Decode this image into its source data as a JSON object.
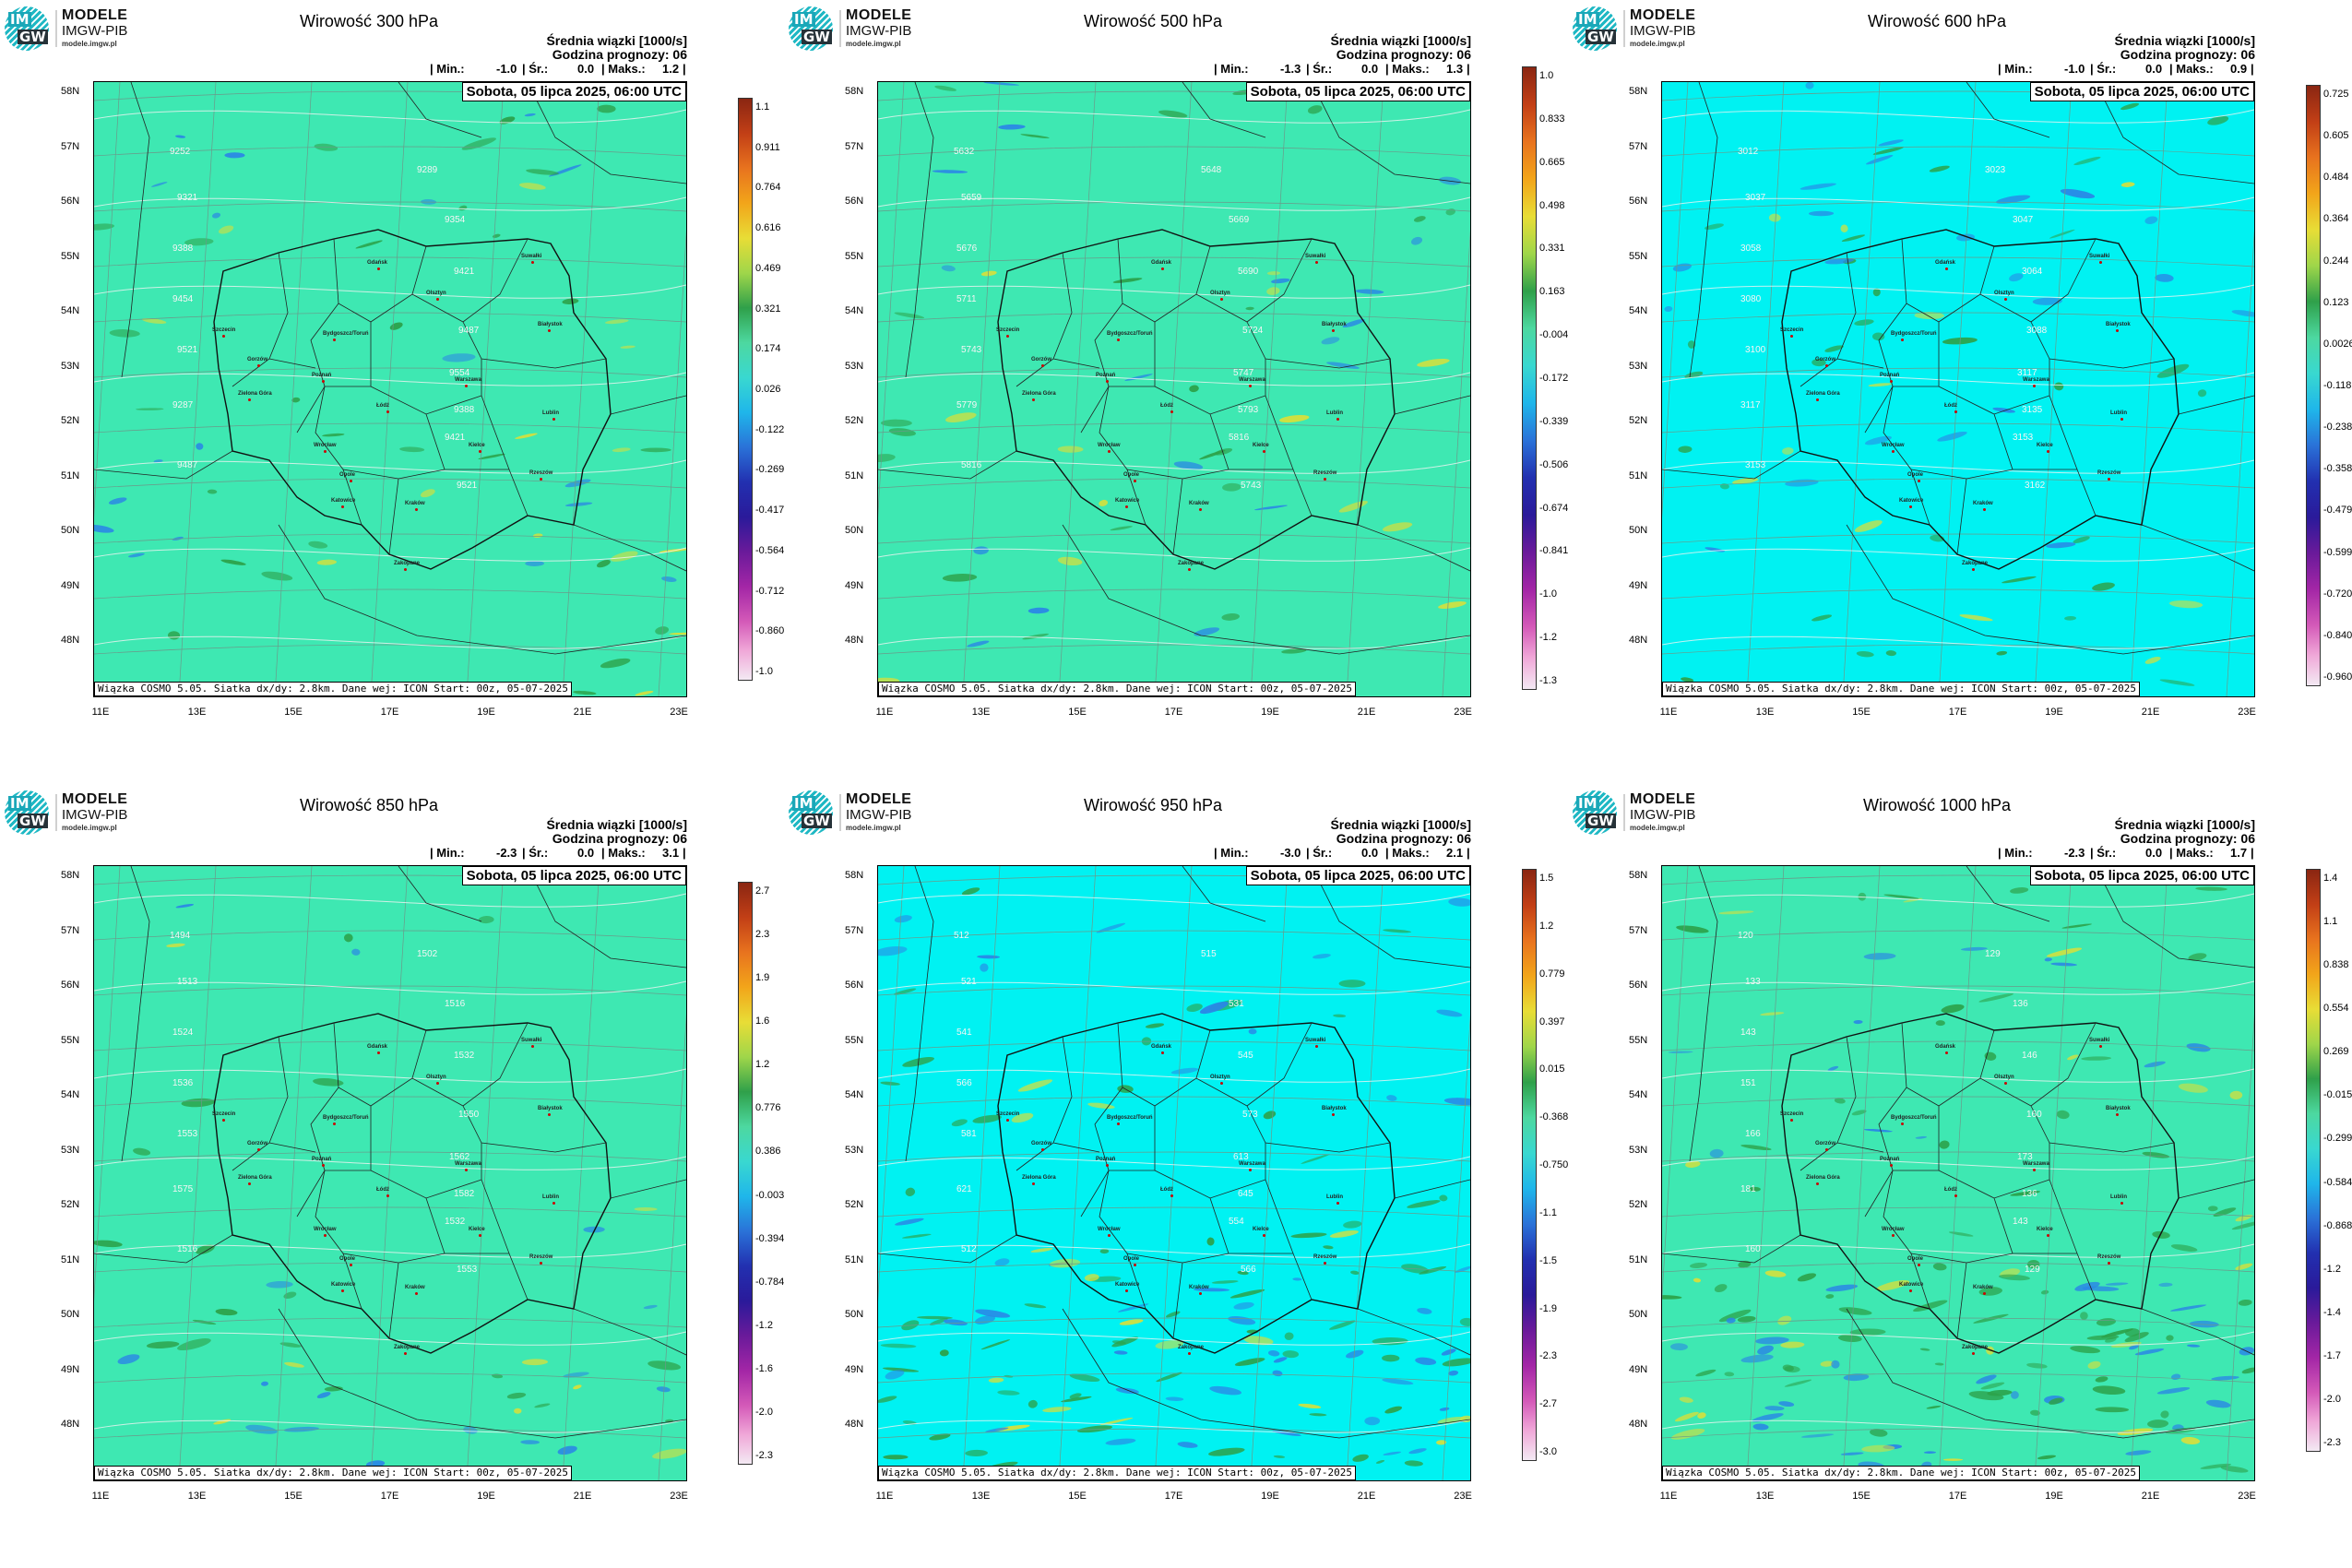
{
  "org": {
    "name": "MODELE",
    "sub": "IMGW-PIB",
    "url": "modele.imgw.pl",
    "mark_top": "IM",
    "mark_bottom": "GW"
  },
  "common": {
    "subtitle1": "Średnia wiązki [1000/s]",
    "subtitle2": "Godzina prognozy: 06",
    "min_label": "| Min.:",
    "mean_label": "| Śr.:",
    "max_label": "| Maks.:",
    "date": "Sobota, 05 lipca 2025, 06:00 UTC",
    "footer": "Wiązka COSMO 5.05. Siatka dx/dy: 2.8km. Dane wej: ICON Start: 00z, 05-07-2025",
    "lat_labels": [
      "58N",
      "57N",
      "56N",
      "55N",
      "54N",
      "53N",
      "52N",
      "51N",
      "50N",
      "49N",
      "48N"
    ],
    "lon_labels": [
      "11E",
      "13E",
      "15E",
      "17E",
      "19E",
      "21E",
      "23E"
    ]
  },
  "cities": [
    "Gdańsk",
    "Suwałki",
    "Olsztyn",
    "Białystok",
    "Szczecin",
    "Bydgoszcz/Toruń",
    "Gorzów",
    "Poznań",
    "Warszawa",
    "Zielona Góra",
    "Łódź",
    "Lublin",
    "Wrocław",
    "Kielce",
    "Opole",
    "Rzeszów",
    "Katowice",
    "Kraków",
    "Zakopane"
  ],
  "colors": {
    "teal": "#3ee8b2",
    "cyan": "#00f2f2",
    "green": "#2ca24a",
    "blue": "#2a86e6",
    "yellow": "#d8df3a"
  },
  "panels": [
    {
      "title": "Wirowość 300 hPa",
      "min": "-1.0",
      "mean": "0.0",
      "max": "1.2",
      "bg": "teal",
      "cbar_ticks": [
        "1.1",
        "0.911",
        "0.764",
        "0.616",
        "0.469",
        "0.321",
        "0.174",
        "0.026",
        "-0.122",
        "-0.269",
        "-0.417",
        "-0.564",
        "-0.712",
        "-0.860",
        "-1.0"
      ],
      "contours": [
        "9252",
        "9289",
        "9321",
        "9354",
        "9388",
        "9421",
        "9454",
        "9487",
        "9521",
        "9554",
        "9287",
        "9388",
        "9421",
        "9487",
        "9521"
      ]
    },
    {
      "title": "Wirowość 500 hPa",
      "min": "-1.3",
      "mean": "0.0",
      "max": "1.3",
      "bg": "teal",
      "cbar_ticks": [
        "1.0",
        "0.833",
        "0.665",
        "0.498",
        "0.331",
        "0.163",
        "-0.004",
        "-0.172",
        "-0.339",
        "-0.506",
        "-0.674",
        "-0.841",
        "-1.0",
        "-1.2",
        "-1.3"
      ],
      "contours": [
        "5632",
        "5648",
        "5659",
        "5669",
        "5676",
        "5690",
        "5711",
        "5724",
        "5743",
        "5747",
        "5779",
        "5793",
        "5816",
        "5816",
        "5743"
      ]
    },
    {
      "title": "Wirowość 600 hPa",
      "min": "-1.0",
      "mean": "0.0",
      "max": "0.9",
      "bg": "cyan",
      "cbar_ticks": [
        "0.725",
        "0.605",
        "0.484",
        "0.364",
        "0.244",
        "0.123",
        "0.0026",
        "-0.118",
        "-0.238",
        "-0.358",
        "-0.479",
        "-0.599",
        "-0.720",
        "-0.840",
        "-0.960"
      ],
      "contours": [
        "3012",
        "3023",
        "3037",
        "3047",
        "3058",
        "3064",
        "3080",
        "3088",
        "3100",
        "3117",
        "3117",
        "3135",
        "3153",
        "3153",
        "3162"
      ]
    },
    {
      "title": "Wirowość 850 hPa",
      "min": "-2.3",
      "mean": "0.0",
      "max": "3.1",
      "bg": "teal",
      "cbar_ticks": [
        "2.7",
        "2.3",
        "1.9",
        "1.6",
        "1.2",
        "0.776",
        "0.386",
        "-0.003",
        "-0.394",
        "-0.784",
        "-1.2",
        "-1.6",
        "-2.0",
        "-2.3"
      ],
      "contours": [
        "1494",
        "1502",
        "1513",
        "1516",
        "1524",
        "1532",
        "1536",
        "1550",
        "1553",
        "1562",
        "1575",
        "1582",
        "1532",
        "1516",
        "1553"
      ]
    },
    {
      "title": "Wirowość 950 hPa",
      "min": "-3.0",
      "mean": "0.0",
      "max": "2.1",
      "bg": "cyan",
      "cbar_ticks": [
        "1.5",
        "1.2",
        "0.779",
        "0.397",
        "0.015",
        "-0.368",
        "-0.750",
        "-1.1",
        "-1.5",
        "-1.9",
        "-2.3",
        "-2.7",
        "-3.0"
      ],
      "contours": [
        "512",
        "515",
        "521",
        "531",
        "541",
        "545",
        "566",
        "573",
        "581",
        "613",
        "621",
        "645",
        "554",
        "512",
        "566"
      ]
    },
    {
      "title": "Wirowość 1000 hPa",
      "min": "-2.3",
      "mean": "0.0",
      "max": "1.7",
      "bg": "teal",
      "cbar_ticks": [
        "1.4",
        "1.1",
        "0.838",
        "0.554",
        "0.269",
        "-0.015",
        "-0.299",
        "-0.584",
        "-0.868",
        "-1.2",
        "-1.4",
        "-1.7",
        "-2.0",
        "-2.3"
      ],
      "contours": [
        "120",
        "129",
        "133",
        "136",
        "143",
        "146",
        "151",
        "160",
        "166",
        "173",
        "181",
        "136",
        "143",
        "160",
        "129"
      ]
    }
  ]
}
